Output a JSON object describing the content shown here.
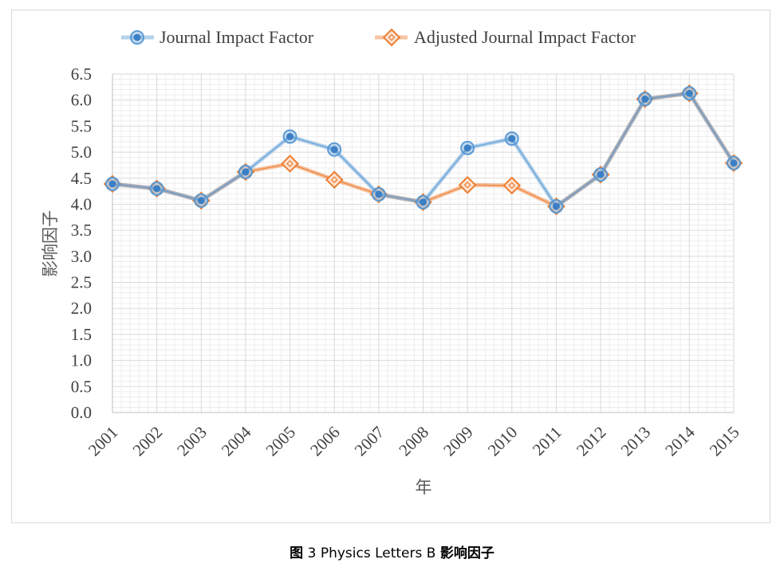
{
  "caption": {
    "label": "图",
    "number": "3",
    "title": "Physics Letters B",
    "suffix": "影响因子"
  },
  "chart_data": {
    "type": "line",
    "title": "",
    "xlabel": "年",
    "ylabel": "影响因子",
    "x": [
      "2001",
      "2002",
      "2003",
      "2004",
      "2005",
      "2006",
      "2007",
      "2008",
      "2009",
      "2010",
      "2011",
      "2012",
      "2013",
      "2014",
      "2015"
    ],
    "ylim": [
      0,
      6.5
    ],
    "yticks": [
      "0.0",
      "0.5",
      "1.0",
      "1.5",
      "2.0",
      "2.5",
      "3.0",
      "3.5",
      "4.0",
      "4.5",
      "5.0",
      "5.5",
      "6.0",
      "6.5"
    ],
    "grid": true,
    "legend": "top",
    "series": [
      {
        "name": "Journal Impact Factor",
        "values": [
          4.39,
          4.3,
          4.07,
          4.62,
          5.3,
          5.05,
          4.19,
          4.04,
          5.08,
          5.26,
          3.96,
          4.57,
          6.02,
          6.13,
          4.79
        ],
        "color": "#5b9bd5",
        "marker": "circle"
      },
      {
        "name": "Adjusted Journal Impact Factor",
        "values": [
          4.39,
          4.3,
          4.07,
          4.62,
          4.78,
          4.47,
          4.19,
          4.04,
          4.37,
          4.36,
          3.96,
          4.57,
          6.02,
          6.13,
          4.79
        ],
        "color": "#ed7d31",
        "marker": "diamond"
      }
    ]
  }
}
